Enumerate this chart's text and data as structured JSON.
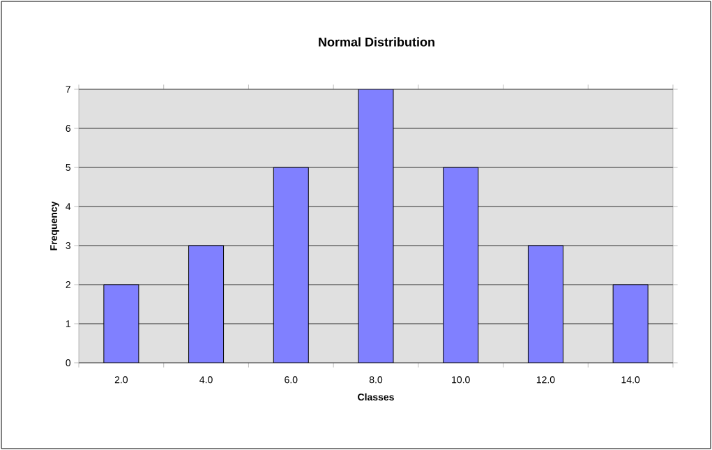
{
  "chart_data": {
    "type": "bar",
    "title": "Normal Distribution",
    "xlabel": "Classes",
    "ylabel": "Frequency",
    "categories": [
      "2.0",
      "4.0",
      "6.0",
      "8.0",
      "10.0",
      "12.0",
      "14.0"
    ],
    "values": [
      2,
      3,
      5,
      7,
      5,
      3,
      2
    ],
    "color": "#8080ff",
    "ylim": [
      0,
      7
    ],
    "yticks": [
      0,
      1,
      2,
      3,
      4,
      5,
      6,
      7
    ],
    "grid": "y"
  }
}
